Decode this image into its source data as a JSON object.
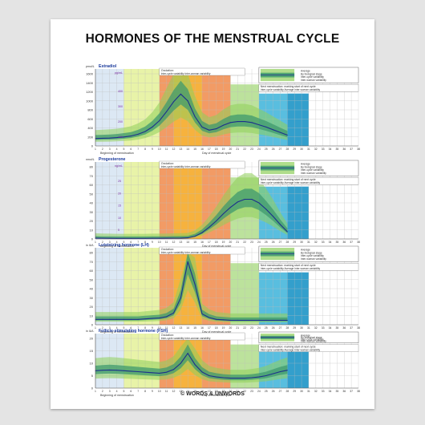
{
  "poster": {
    "title": "HORMONES OF THE MENSTRUAL CYCLE",
    "footer": "© WORDS & UNWORDS"
  },
  "colors": {
    "menstruation": "#c5d8ec",
    "follicular": "#e8f3a8",
    "ovulation_band": "#f08a4a",
    "ovulation_core": "#f6b53a",
    "luteal": "#7cc46a",
    "next_cycle": "#22a8d4",
    "inter_woman": "#8fcf5a",
    "inter_cycle": "#3f9a6e",
    "average_line": "#1c2f8c",
    "axis": "#555555",
    "legend_border": "#444444"
  },
  "legend": {
    "items": [
      "Average",
      "By biological stage",
      "Inter-cycle variability",
      "Inter-woman variability"
    ]
  },
  "annotations": {
    "ovulation": "Ovulation:",
    "ovulation_sub": "Inter-cycle variability",
    "ovulation_sub2": "Inter-woman variability",
    "next_menstruation": "Next menstruation: marking start of next cycle",
    "next_sub": "Inter-cycle variability    Average    Inter-woman variability",
    "x_start": "Beginning of menstruation",
    "x_end": "Day of menstrual cycle"
  },
  "chart_data": [
    {
      "type": "area",
      "hormone": "Estradiol",
      "unit_left": "pmol/L",
      "unit_right": "pg/mL",
      "x": [
        1,
        2,
        3,
        4,
        5,
        6,
        7,
        8,
        9,
        10,
        11,
        12,
        13,
        14,
        15,
        16,
        17,
        18,
        19,
        20,
        21,
        22,
        23,
        24,
        25,
        26,
        27,
        28
      ],
      "average": [
        165,
        170,
        175,
        185,
        200,
        220,
        260,
        320,
        420,
        560,
        760,
        980,
        1150,
        1000,
        650,
        420,
        350,
        380,
        460,
        520,
        540,
        540,
        520,
        470,
        420,
        360,
        300,
        240
      ],
      "ylim": [
        0,
        1600
      ],
      "yticks": [
        0,
        200,
        400,
        600,
        800,
        1000,
        1200,
        1400,
        1600
      ],
      "right_ticks": [
        100,
        200,
        300,
        400
      ]
    },
    {
      "type": "area",
      "hormone": "Progesterone",
      "unit_left": "nmol/L",
      "unit_right": "ng/mL",
      "x": [
        1,
        2,
        3,
        4,
        5,
        6,
        7,
        8,
        9,
        10,
        11,
        12,
        13,
        14,
        15,
        16,
        17,
        18,
        19,
        20,
        21,
        22,
        23,
        24,
        25,
        26,
        27,
        28
      ],
      "average": [
        1.0,
        0.8,
        0.7,
        0.6,
        0.6,
        0.6,
        0.6,
        0.6,
        0.7,
        0.7,
        0.8,
        0.9,
        1.0,
        1.2,
        3,
        7,
        13,
        20,
        28,
        35,
        41,
        44,
        44,
        40,
        33,
        25,
        16,
        8
      ],
      "ylim": [
        0,
        80
      ],
      "yticks": [
        0,
        10,
        20,
        30,
        40,
        50,
        60,
        70,
        80
      ],
      "right_ticks": [
        5,
        10,
        15,
        20,
        25
      ]
    },
    {
      "type": "area",
      "hormone": "Luteinizing hormone (LH)",
      "unit_left": "in IU/L",
      "x": [
        1,
        2,
        3,
        4,
        5,
        6,
        7,
        8,
        9,
        10,
        11,
        12,
        13,
        14,
        15,
        16,
        17,
        18,
        19,
        20,
        21,
        22,
        23,
        24,
        25,
        26,
        27,
        28
      ],
      "average": [
        6,
        6,
        6,
        6,
        6,
        6,
        6,
        6.5,
        7,
        7.5,
        9,
        13,
        30,
        70,
        45,
        12,
        8,
        6,
        5.5,
        5,
        5,
        5,
        5,
        5,
        5,
        5,
        5,
        5
      ],
      "ylim": [
        0,
        80
      ],
      "yticks": [
        0,
        10,
        20,
        30,
        40,
        50,
        60,
        70,
        80
      ]
    },
    {
      "type": "area",
      "hormone": "Follicle-stimulating hormone (FSH)",
      "unit_left": "in IU/L",
      "x": [
        1,
        2,
        3,
        4,
        5,
        6,
        7,
        8,
        9,
        10,
        11,
        12,
        13,
        14,
        15,
        16,
        17,
        18,
        19,
        20,
        21,
        22,
        23,
        24,
        25,
        26,
        27,
        28
      ],
      "average": [
        7,
        7.2,
        7.3,
        7.2,
        7,
        6.8,
        6.6,
        6.4,
        6.2,
        6,
        6.4,
        7.5,
        10,
        14,
        9.5,
        6.5,
        5,
        4.5,
        4.2,
        4,
        4,
        4,
        4.2,
        4.5,
        5,
        5.8,
        6.6,
        7.2
      ],
      "ylim": [
        0,
        20
      ],
      "yticks": [
        0,
        5,
        10,
        15,
        20
      ]
    }
  ]
}
